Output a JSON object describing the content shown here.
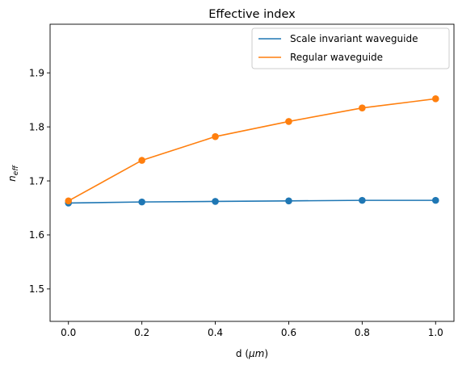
{
  "chart_data": {
    "type": "line",
    "title": "Effective index",
    "xlabel_main": "d (",
    "xlabel_unit": "μm",
    "xlabel_close": ")",
    "ylabel_base": "n",
    "ylabel_sub": "eff",
    "x": [
      0.0,
      0.2,
      0.4,
      0.6,
      0.8,
      1.0
    ],
    "xlim": [
      -0.05,
      1.05
    ],
    "ylim": [
      1.44,
      1.99
    ],
    "x_ticks": [
      0.0,
      0.2,
      0.4,
      0.6,
      0.8,
      1.0
    ],
    "x_tick_labels": [
      "0.0",
      "0.2",
      "0.4",
      "0.6",
      "0.8",
      "1.0"
    ],
    "y_ticks": [
      1.5,
      1.6,
      1.7,
      1.8,
      1.9
    ],
    "y_tick_labels": [
      "1.5",
      "1.6",
      "1.7",
      "1.8",
      "1.9"
    ],
    "grid": false,
    "legend_position": "top-right",
    "series": [
      {
        "name": "Scale invariant waveguide",
        "color": "#1f77b4",
        "values": [
          1.659,
          1.661,
          1.662,
          1.663,
          1.664,
          1.664
        ]
      },
      {
        "name": "Regular waveguide",
        "color": "#ff7f0e",
        "values": [
          1.663,
          1.738,
          1.782,
          1.81,
          1.835,
          1.852
        ]
      }
    ]
  }
}
